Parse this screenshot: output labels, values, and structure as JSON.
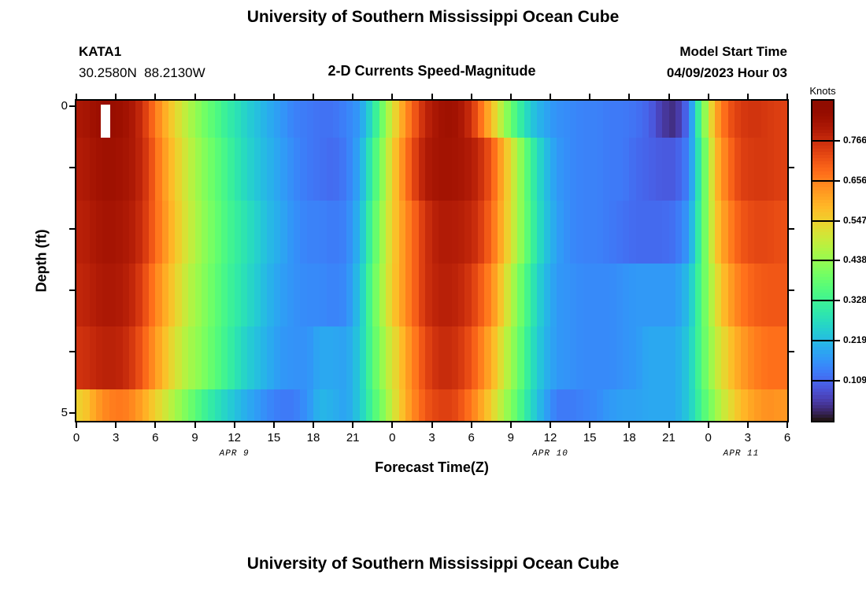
{
  "page_title": "University of Southern Mississippi Ocean Cube",
  "header": {
    "station_id": "KATA1",
    "coordinates": "30.2580N  88.2130W",
    "plot_title": "2-D Currents Speed-Magnitude",
    "model_start_label": "Model Start Time",
    "model_start_value": "04/09/2023 Hour 03"
  },
  "footer": {
    "next_panel_title": "University of Southern Mississippi Ocean Cube"
  },
  "chart_data": {
    "type": "heatmap",
    "title": "2-D Currents Speed-Magnitude",
    "xlabel": "Forecast Time(Z)",
    "ylabel": "Depth (ft)",
    "colorbar_label": "Knots",
    "colormap": "turbo",
    "value_range_knots": [
      0,
      0.875
    ],
    "colorbar_tick_labels": [
      "0.766",
      "0.656",
      "0.547",
      "0.438",
      "0.328",
      "0.219",
      "0.109"
    ],
    "x_hours_total": 54,
    "x_ticks": [
      {
        "hour": 0,
        "label": "0"
      },
      {
        "hour": 3,
        "label": "3"
      },
      {
        "hour": 6,
        "label": "6"
      },
      {
        "hour": 9,
        "label": "9"
      },
      {
        "hour": 12,
        "label": "12"
      },
      {
        "hour": 15,
        "label": "15"
      },
      {
        "hour": 18,
        "label": "18"
      },
      {
        "hour": 21,
        "label": "21"
      },
      {
        "hour": 24,
        "label": "0"
      },
      {
        "hour": 27,
        "label": "3"
      },
      {
        "hour": 30,
        "label": "6"
      },
      {
        "hour": 33,
        "label": "9"
      },
      {
        "hour": 36,
        "label": "12"
      },
      {
        "hour": 39,
        "label": "15"
      },
      {
        "hour": 42,
        "label": "18"
      },
      {
        "hour": 45,
        "label": "21"
      },
      {
        "hour": 48,
        "label": "0"
      },
      {
        "hour": 51,
        "label": "3"
      },
      {
        "hour": 54,
        "label": "6"
      }
    ],
    "x_date_labels": [
      {
        "hour": 12,
        "label": "APR 9"
      },
      {
        "hour": 36,
        "label": "APR 10"
      },
      {
        "hour": 50.5,
        "label": "APR 11"
      }
    ],
    "depth_ticks_labeled": [
      {
        "depth": 0,
        "label": "0"
      },
      {
        "depth": 5,
        "label": "5"
      }
    ],
    "depth_ticks_minor": [
      1,
      2,
      3,
      4
    ],
    "depths_ft": [
      0,
      1,
      2,
      3,
      4,
      5
    ],
    "values_knots": [
      [
        0.81,
        0.83,
        0.84,
        0.83,
        0.8,
        0.72,
        0.62,
        0.54,
        0.47,
        0.41,
        0.36,
        0.31,
        0.27,
        0.23,
        0.2,
        0.17,
        0.14,
        0.13,
        0.12,
        0.12,
        0.14,
        0.17,
        0.28,
        0.44,
        0.58,
        0.69,
        0.78,
        0.82,
        0.83,
        0.8,
        0.71,
        0.58,
        0.45,
        0.33,
        0.24,
        0.19,
        0.16,
        0.15,
        0.14,
        0.14,
        0.13,
        0.13,
        0.12,
        0.1,
        0.05,
        0.03,
        0.12,
        0.38,
        0.6,
        0.71,
        0.75,
        0.76,
        0.75,
        0.74
      ],
      [
        0.8,
        0.82,
        0.83,
        0.82,
        0.8,
        0.74,
        0.64,
        0.56,
        0.49,
        0.43,
        0.38,
        0.33,
        0.28,
        0.24,
        0.21,
        0.18,
        0.15,
        0.13,
        0.12,
        0.11,
        0.13,
        0.19,
        0.32,
        0.47,
        0.61,
        0.72,
        0.8,
        0.82,
        0.82,
        0.81,
        0.78,
        0.71,
        0.59,
        0.46,
        0.33,
        0.23,
        0.17,
        0.15,
        0.14,
        0.14,
        0.13,
        0.13,
        0.11,
        0.1,
        0.09,
        0.09,
        0.14,
        0.34,
        0.57,
        0.68,
        0.74,
        0.75,
        0.75,
        0.74
      ],
      [
        0.79,
        0.81,
        0.82,
        0.81,
        0.79,
        0.73,
        0.65,
        0.57,
        0.5,
        0.44,
        0.39,
        0.34,
        0.3,
        0.26,
        0.22,
        0.19,
        0.16,
        0.14,
        0.14,
        0.13,
        0.14,
        0.21,
        0.35,
        0.49,
        0.6,
        0.68,
        0.76,
        0.8,
        0.8,
        0.79,
        0.76,
        0.69,
        0.58,
        0.46,
        0.34,
        0.24,
        0.18,
        0.15,
        0.14,
        0.14,
        0.13,
        0.12,
        0.11,
        0.11,
        0.11,
        0.12,
        0.17,
        0.35,
        0.55,
        0.65,
        0.71,
        0.73,
        0.73,
        0.72
      ],
      [
        0.78,
        0.8,
        0.81,
        0.8,
        0.77,
        0.7,
        0.62,
        0.55,
        0.48,
        0.43,
        0.38,
        0.33,
        0.29,
        0.25,
        0.21,
        0.18,
        0.16,
        0.15,
        0.15,
        0.14,
        0.15,
        0.23,
        0.37,
        0.5,
        0.6,
        0.68,
        0.76,
        0.79,
        0.79,
        0.77,
        0.72,
        0.65,
        0.54,
        0.42,
        0.31,
        0.22,
        0.17,
        0.16,
        0.15,
        0.15,
        0.15,
        0.16,
        0.17,
        0.17,
        0.17,
        0.17,
        0.22,
        0.36,
        0.51,
        0.61,
        0.67,
        0.7,
        0.71,
        0.71
      ],
      [
        0.76,
        0.78,
        0.79,
        0.78,
        0.74,
        0.67,
        0.59,
        0.52,
        0.46,
        0.42,
        0.37,
        0.32,
        0.27,
        0.23,
        0.2,
        0.17,
        0.16,
        0.16,
        0.19,
        0.19,
        0.18,
        0.24,
        0.36,
        0.47,
        0.56,
        0.65,
        0.73,
        0.77,
        0.77,
        0.74,
        0.68,
        0.6,
        0.5,
        0.4,
        0.29,
        0.21,
        0.17,
        0.16,
        0.15,
        0.15,
        0.15,
        0.16,
        0.17,
        0.19,
        0.19,
        0.19,
        0.24,
        0.36,
        0.48,
        0.56,
        0.62,
        0.66,
        0.68,
        0.68
      ],
      [
        0.55,
        0.62,
        0.66,
        0.67,
        0.64,
        0.58,
        0.52,
        0.46,
        0.4,
        0.34,
        0.29,
        0.25,
        0.21,
        0.18,
        0.15,
        0.13,
        0.13,
        0.16,
        0.21,
        0.2,
        0.18,
        0.24,
        0.34,
        0.44,
        0.55,
        0.64,
        0.71,
        0.74,
        0.74,
        0.7,
        0.63,
        0.55,
        0.46,
        0.37,
        0.27,
        0.19,
        0.13,
        0.13,
        0.14,
        0.15,
        0.17,
        0.18,
        0.18,
        0.19,
        0.19,
        0.19,
        0.24,
        0.34,
        0.44,
        0.52,
        0.58,
        0.62,
        0.64,
        0.63
      ]
    ],
    "missing_data": {
      "depth_row": 0,
      "hour_start": 1.85,
      "hour_end": 2.55
    }
  }
}
